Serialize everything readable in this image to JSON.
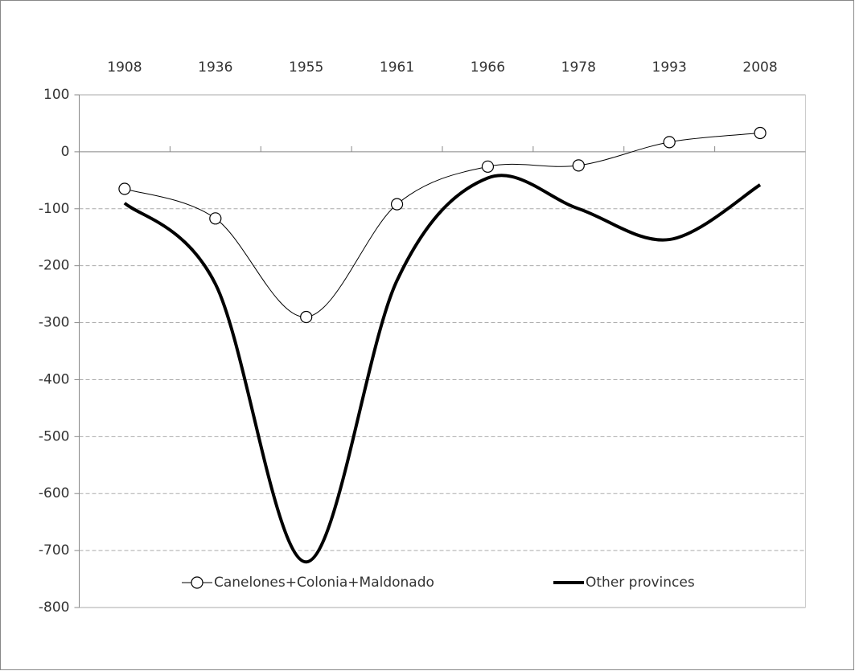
{
  "chart_data": {
    "type": "line",
    "categories": [
      "1908",
      "1936",
      "1955",
      "1961",
      "1966",
      "1978",
      "1993",
      "2008"
    ],
    "series": [
      {
        "name": "Canelones+Colonia+Maldonado",
        "color": "#000000",
        "marker": "circle",
        "values": [
          -65,
          -117,
          -290,
          -92,
          -26,
          -24,
          17,
          33
        ]
      },
      {
        "name": "Other provinces",
        "color": "#000000",
        "marker": "none",
        "values": [
          -90,
          -232,
          -720,
          -226,
          -46,
          -100,
          -154,
          -58
        ]
      }
    ],
    "ylim": [
      -800,
      100
    ],
    "yticks": [
      -800,
      -700,
      -600,
      -500,
      -400,
      -300,
      -200,
      -100,
      0,
      100
    ],
    "grid": true,
    "legend": "bottom"
  }
}
